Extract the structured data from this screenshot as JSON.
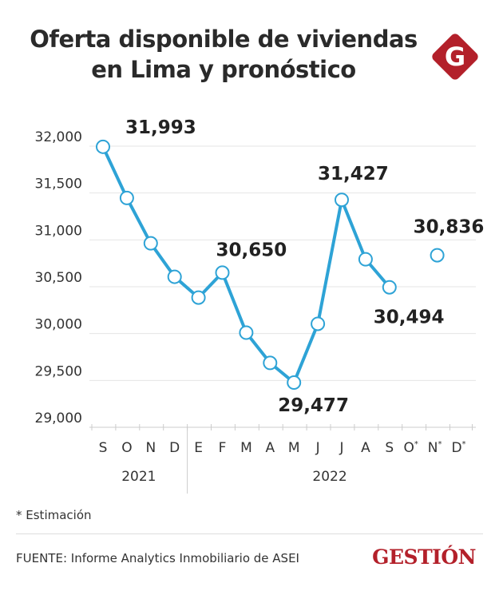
{
  "title": "Oferta disponible de viviendas en Lima y pronóstico",
  "logo_letter": "G",
  "note": "* Estimación",
  "source": "FUENTE: Informe Analytics Inmobiliario de ASEI",
  "brand": "GESTIÓN",
  "colors": {
    "line": "#2ea3d6",
    "brand": "#b3202a",
    "text": "#222222"
  },
  "chart_data": {
    "type": "line",
    "categories": [
      "S",
      "O",
      "N",
      "D",
      "E",
      "F",
      "M",
      "A",
      "M",
      "J",
      "J",
      "A",
      "S",
      "O*",
      "N*",
      "D*"
    ],
    "year_groups": [
      {
        "label": "2021",
        "span": 4
      },
      {
        "label": "2022",
        "span": 12
      }
    ],
    "series": [
      {
        "values": [
          31993,
          31447,
          30963,
          30606,
          30384,
          30650,
          30010,
          29687,
          29477,
          30104,
          31427,
          30793,
          30494,
          null,
          30836,
          null
        ],
        "labels": [
          "31,993",
          null,
          null,
          null,
          null,
          "30,650",
          null,
          null,
          "29,477",
          null,
          "31,427",
          null,
          "30,494",
          null,
          "30,836",
          null
        ]
      }
    ],
    "yticks": [
      29000,
      29500,
      30000,
      30500,
      31000,
      31500,
      32000
    ],
    "ytick_labels": [
      "29,000",
      "29,500",
      "30,000",
      "30,500",
      "31,000",
      "31,500",
      "32,000"
    ],
    "ylim": [
      29000,
      32000
    ],
    "grid": true
  }
}
